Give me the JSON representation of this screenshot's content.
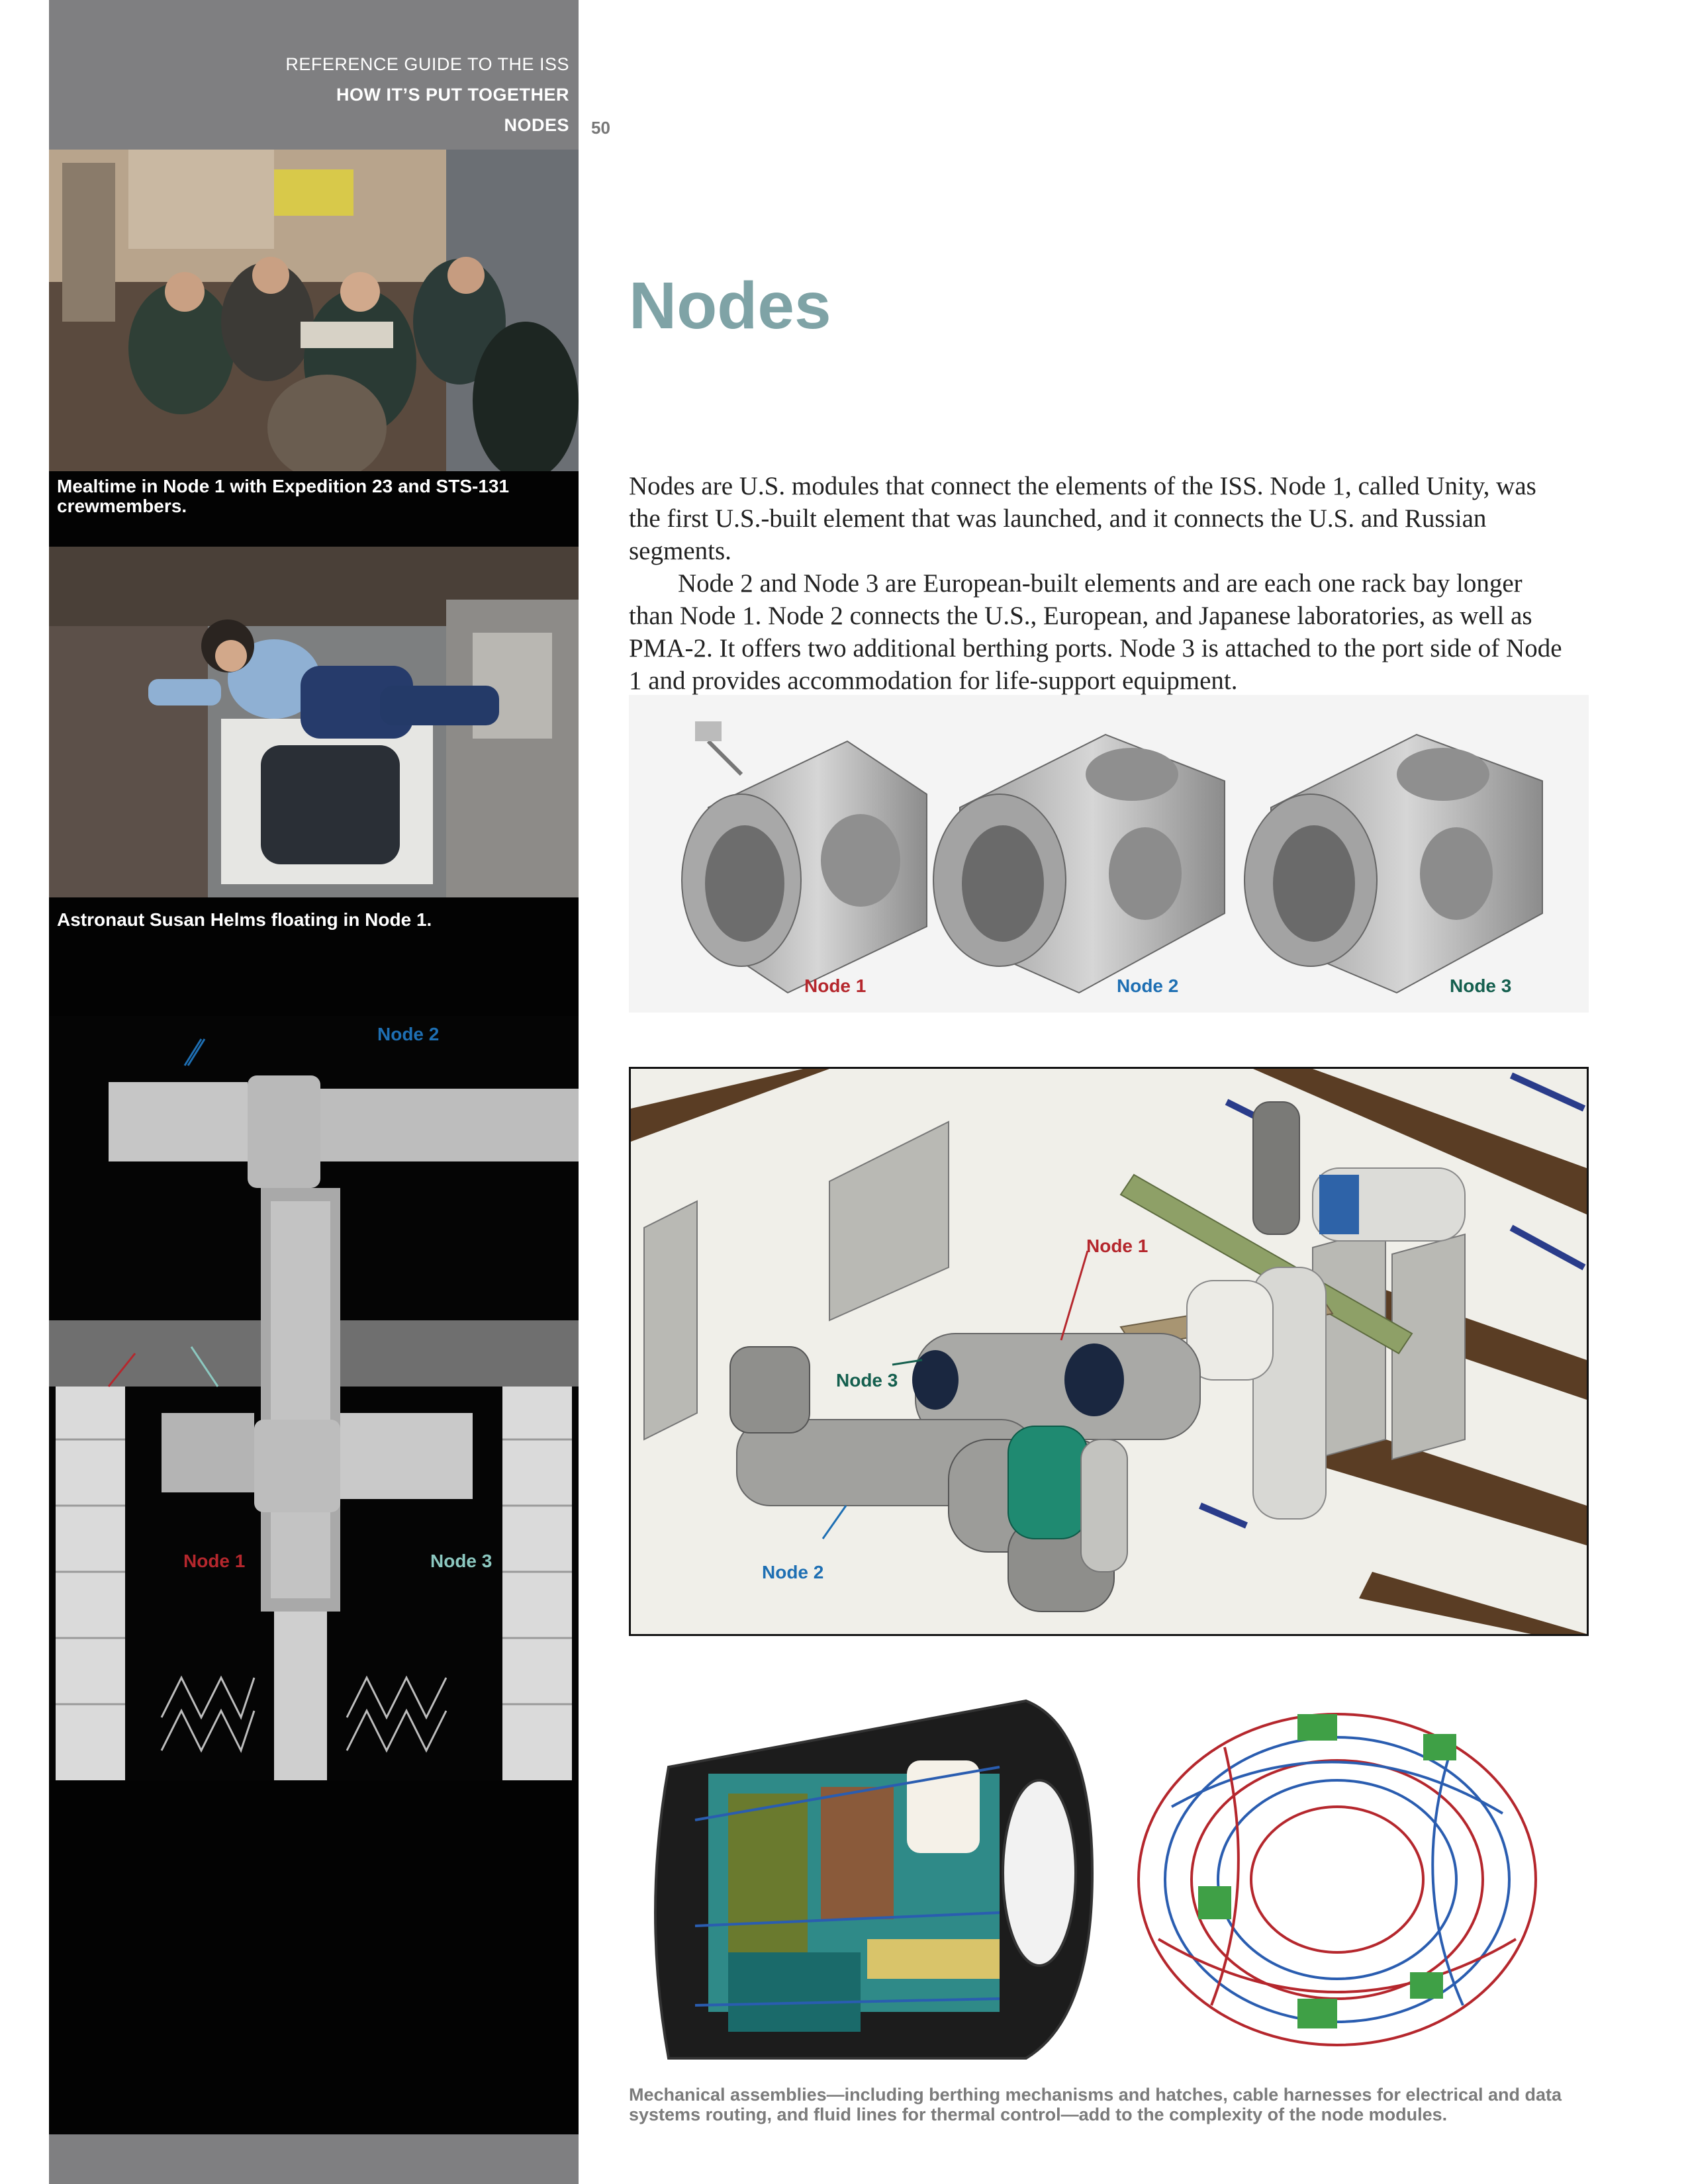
{
  "header": {
    "guide": "REFERENCE GUIDE TO THE ISS",
    "section": "HOW IT’S PUT TOGETHER",
    "subsection": "NODES",
    "page_number": "50"
  },
  "sidebar": {
    "photo1_caption": "Mealtime in Node 1 with Expedition 23 and STS-131 crewmembers.",
    "photo2_caption": "Astronaut Susan Helms floating in Node 1.",
    "photo3_labels": {
      "node2": "Node 2",
      "node1": "Node 1",
      "node3": "Node 3"
    }
  },
  "main": {
    "title": "Nodes",
    "paragraphs": [
      "Nodes are U.S. modules that connect the elements of the ISS. Node 1, called Unity, was the first U.S.-built element that was launched, and it connects the U.S. and Russian segments.",
      "Node 2 and Node 3 are European-built elements and are each one rack bay longer than Node 1. Node 2 connects the U.S., European, and Japanese laboratories, as well as PMA-2. It offers two additional berthing ports. Node 3 is attached to the port side of Node 1 and provides accommodation for life-support equipment."
    ],
    "module_labels": [
      "Node 1",
      "Node 2",
      "Node 3"
    ],
    "diagram_labels": {
      "node1": "Node 1",
      "node3": "Node 3",
      "node2": "Node 2"
    },
    "bottom_caption": "Mechanical assemblies—including berthing mechanisms and hatches, cable harnesses for electrical and data systems routing, and fluid lines for thermal control—add to the complexity of the node modules."
  },
  "colors": {
    "title": "#7fa3a6",
    "node1": "#b5272d",
    "node2": "#1e6fb3",
    "node3": "#145f4e",
    "sidebar": "#030303",
    "band": "#7f7f81"
  }
}
